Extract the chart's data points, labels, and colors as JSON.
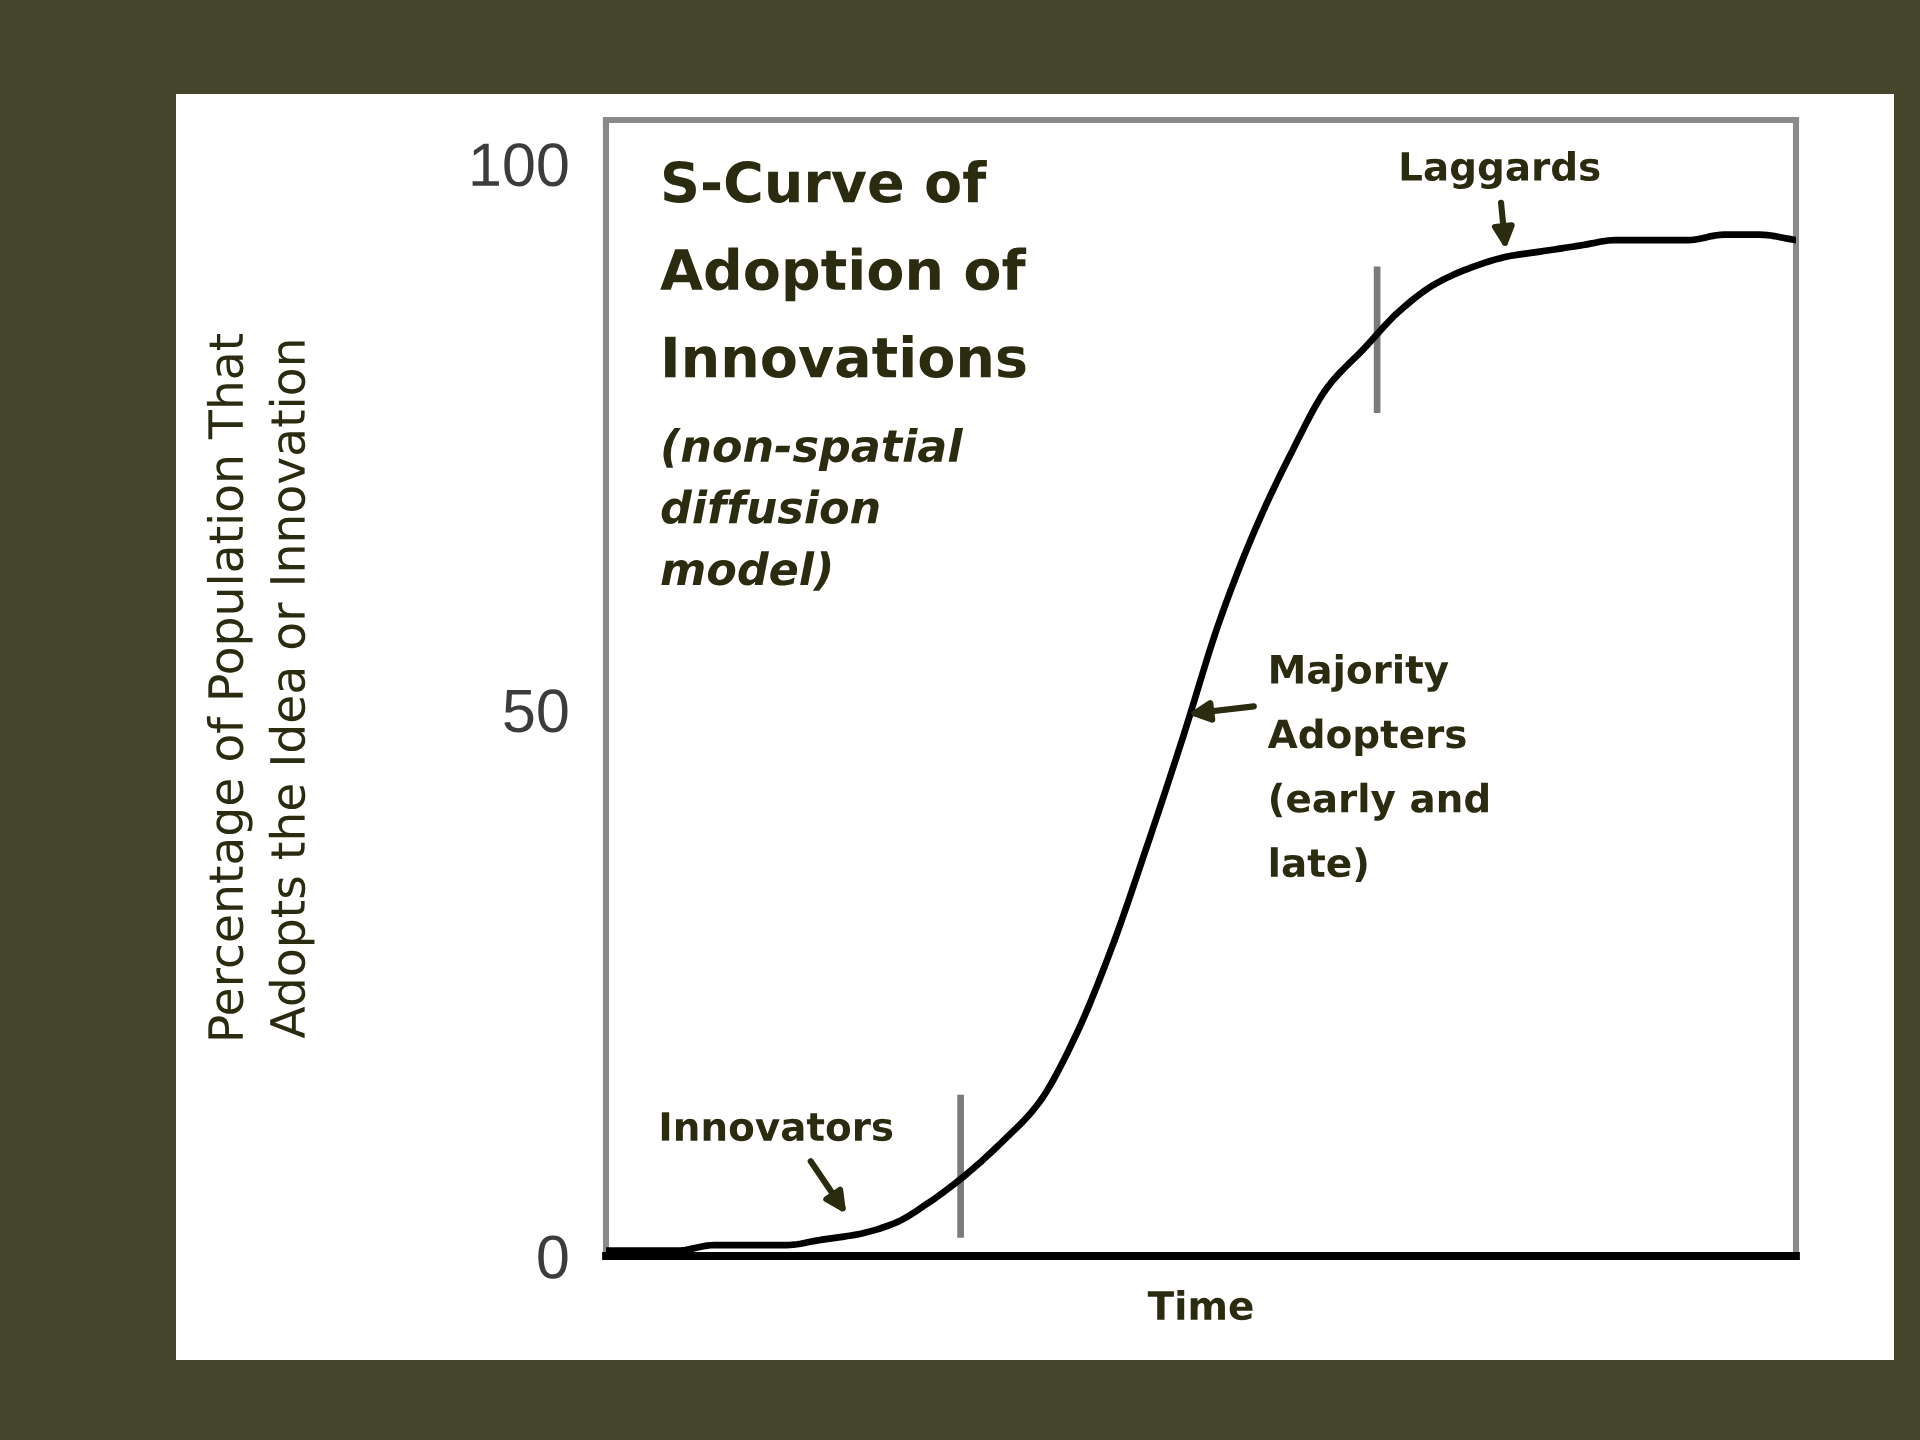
{
  "chart_data": {
    "type": "line",
    "title": "S-Curve of\nAdoption of\nInnovations",
    "subtitle": "(non-spatial\ndiffusion\nmodel)",
    "xlabel": "Time",
    "ylabel": "Percentage of Population That\nAdopts the Idea or Innovation",
    "categories": [
      null,
      null,
      null,
      null,
      null,
      null,
      null,
      null,
      null,
      null,
      null,
      null,
      null,
      null,
      null,
      null,
      null,
      null,
      null,
      null,
      null,
      null,
      null,
      null,
      null,
      null,
      null,
      null,
      null,
      null,
      null,
      null,
      null,
      null
    ],
    "series": [
      {
        "color": "#000000",
        "values": [
          0.5,
          0.5,
          0.5,
          1,
          1,
          1,
          1.5,
          2,
          3,
          5,
          7.5,
          10.5,
          14,
          20,
          28,
          37.5,
          47.5,
          58,
          66.5,
          73.5,
          79.5,
          83,
          86.5,
          89,
          90.5,
          91.5,
          92,
          92.5,
          93,
          93,
          93,
          93.5,
          93.5,
          93
        ]
      }
    ],
    "ylim": [
      0,
      104
    ],
    "yticks": [
      0,
      50,
      100
    ],
    "annotations": [
      "Laggards",
      "Majority\nAdopters\n(early and\nlate)",
      "Innovators"
    ]
  }
}
